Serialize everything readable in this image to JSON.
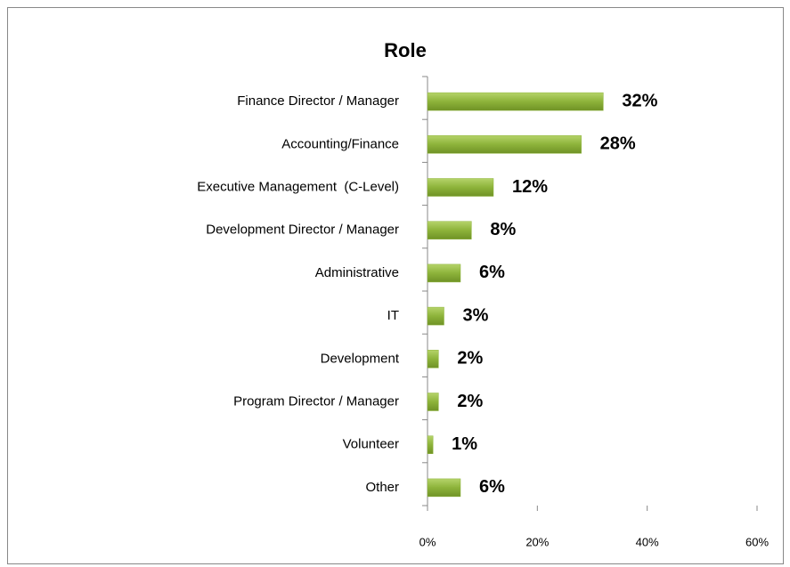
{
  "chart_data": {
    "type": "bar",
    "orientation": "horizontal",
    "title": "Role",
    "categories": [
      "Finance Director / Manager",
      "Accounting/Finance",
      "Executive Management  (C-Level)",
      "Development Director / Manager",
      "Administrative",
      "IT",
      "Development",
      "Program Director / Manager",
      "Volunteer",
      "Other"
    ],
    "values": [
      32,
      28,
      12,
      8,
      6,
      3,
      2,
      2,
      1,
      6
    ],
    "value_labels": [
      "32%",
      "28%",
      "12%",
      "8%",
      "6%",
      "3%",
      "2%",
      "2%",
      "1%",
      "6%"
    ],
    "color": "#8db33a",
    "xlim": [
      0,
      60
    ],
    "xticks": [
      {
        "value": 0,
        "label": "0%"
      },
      {
        "value": 20,
        "label": "20%"
      },
      {
        "value": 40,
        "label": "40%"
      },
      {
        "value": 60,
        "label": "60%"
      }
    ],
    "grid": false
  }
}
